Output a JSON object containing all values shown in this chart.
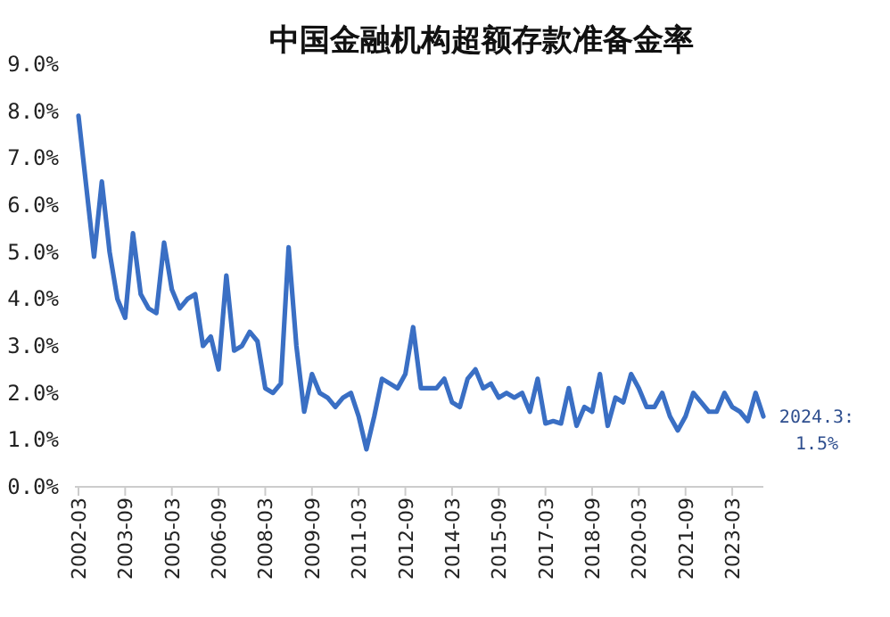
{
  "chart_data": {
    "type": "line",
    "title": "中国金融机构超额存款准备金率",
    "categories": [
      "2002-03",
      null,
      null,
      null,
      null,
      null,
      "2003-09",
      null,
      null,
      null,
      null,
      null,
      "2005-03",
      null,
      null,
      null,
      null,
      null,
      "2006-09",
      null,
      null,
      null,
      null,
      null,
      "2008-03",
      null,
      null,
      null,
      null,
      null,
      "2009-09",
      null,
      null,
      null,
      null,
      null,
      "2011-03",
      null,
      null,
      null,
      null,
      null,
      "2012-09",
      null,
      null,
      null,
      null,
      null,
      "2014-03",
      null,
      null,
      null,
      null,
      null,
      "2015-09",
      null,
      null,
      null,
      null,
      null,
      "2017-03",
      null,
      null,
      null,
      null,
      null,
      "2018-09",
      null,
      null,
      null,
      null,
      null,
      "2020-03",
      null,
      null,
      null,
      null,
      null,
      "2021-09",
      null,
      null,
      null,
      null,
      null,
      "2023-03",
      null,
      null,
      null,
      null
    ],
    "series": [
      {
        "color": "#3a6fc4",
        "values": [
          7.9,
          6.4,
          4.9,
          6.5,
          5.0,
          4.0,
          3.6,
          5.4,
          4.1,
          3.8,
          3.7,
          5.2,
          4.2,
          3.8,
          4.0,
          4.1,
          3.0,
          3.2,
          2.5,
          4.5,
          2.9,
          3.0,
          3.3,
          3.1,
          2.1,
          2.0,
          2.2,
          5.1,
          3.0,
          1.6,
          2.4,
          2.0,
          1.9,
          1.7,
          1.9,
          2.0,
          1.5,
          0.8,
          1.5,
          2.3,
          2.2,
          2.1,
          2.4,
          3.4,
          2.1,
          2.1,
          2.1,
          2.3,
          1.8,
          1.7,
          2.3,
          2.5,
          2.1,
          2.2,
          1.9,
          2.0,
          1.9,
          2.0,
          1.6,
          2.3,
          1.35,
          1.4,
          1.35,
          2.1,
          1.3,
          1.7,
          1.6,
          2.4,
          1.3,
          1.9,
          1.8,
          2.4,
          2.1,
          1.7,
          1.7,
          2.0,
          1.5,
          1.2,
          1.5,
          2.0,
          1.8,
          1.6,
          1.6,
          2.0,
          1.7,
          1.6,
          1.4,
          2.0,
          1.5
        ]
      }
    ],
    "ylim": [
      0,
      9
    ],
    "yticks": [
      {
        "value": 0,
        "label": "0.0%"
      },
      {
        "value": 1,
        "label": "1.0%"
      },
      {
        "value": 2,
        "label": "2.0%"
      },
      {
        "value": 3,
        "label": "3.0%"
      },
      {
        "value": 4,
        "label": "4.0%"
      },
      {
        "value": 5,
        "label": "5.0%"
      },
      {
        "value": 6,
        "label": "6.0%"
      },
      {
        "value": 7,
        "label": "7.0%"
      },
      {
        "value": 8,
        "label": "8.0%"
      },
      {
        "value": 9,
        "label": "9.0%"
      }
    ],
    "annotations": [
      "2024.3: 1.5%"
    ],
    "marker": "none",
    "line_style": "solid"
  }
}
